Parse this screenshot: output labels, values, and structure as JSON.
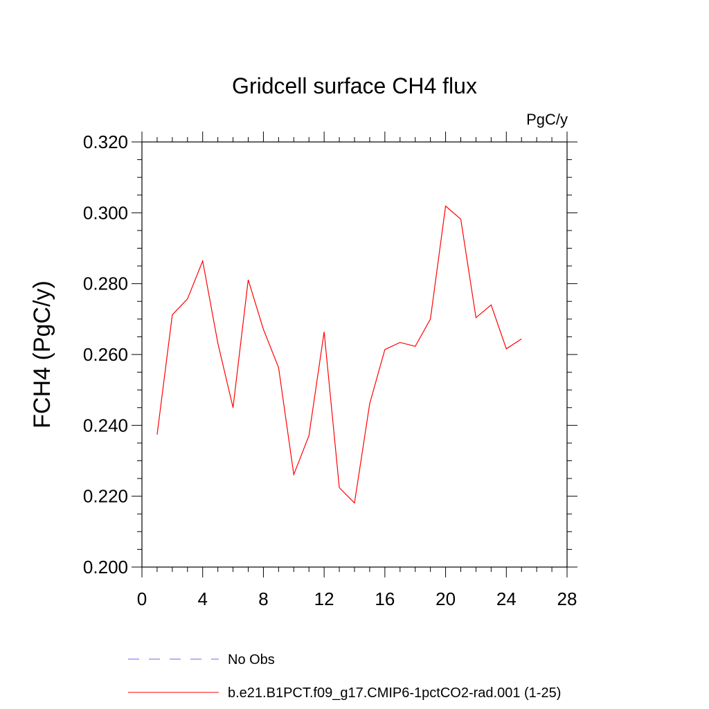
{
  "chart_data": {
    "type": "line",
    "title": "Gridcell surface CH4 flux",
    "units_label": "PgC/y",
    "ylabel": "FCH4  (PgC/y)",
    "xlabel": "",
    "xlim": [
      0,
      28
    ],
    "ylim": [
      0.2,
      0.32
    ],
    "xticks": [
      0,
      4,
      8,
      12,
      16,
      20,
      24,
      28
    ],
    "xtick_labels": [
      "0",
      "4",
      "8",
      "12",
      "16",
      "20",
      "24",
      "28"
    ],
    "yticks": [
      0.2,
      0.22,
      0.24,
      0.26,
      0.28,
      0.3,
      0.32
    ],
    "ytick_labels": [
      "0.200",
      "0.220",
      "0.240",
      "0.260",
      "0.280",
      "0.300",
      "0.320"
    ],
    "grid": false,
    "legend_position": "bottom",
    "series": [
      {
        "name": "b.e21.B1PCT.f09_g17.CMIP6-1pctCO2-rad.001 (1-25)",
        "color": "#ff0000",
        "dash": "solid",
        "x": [
          1,
          2,
          3,
          4,
          5,
          6,
          7,
          8,
          9,
          10,
          11,
          12,
          13,
          14,
          15,
          16,
          17,
          18,
          19,
          20,
          21,
          22,
          23,
          24,
          25
        ],
        "values": [
          0.2374,
          0.2712,
          0.2757,
          0.2864,
          0.2632,
          0.245,
          0.2811,
          0.2671,
          0.2563,
          0.2261,
          0.2371,
          0.2664,
          0.2224,
          0.2181,
          0.2461,
          0.2614,
          0.2634,
          0.2623,
          0.27,
          0.3019,
          0.2982,
          0.2704,
          0.274,
          0.2616,
          0.2644
        ]
      }
    ],
    "legend": [
      {
        "label": "No Obs",
        "color": "#6666ff",
        "dash": "dashed"
      },
      {
        "label": "b.e21.B1PCT.f09_g17.CMIP6-1pctCO2-rad.001 (1-25)",
        "color": "#ff0000",
        "dash": "solid"
      }
    ]
  }
}
